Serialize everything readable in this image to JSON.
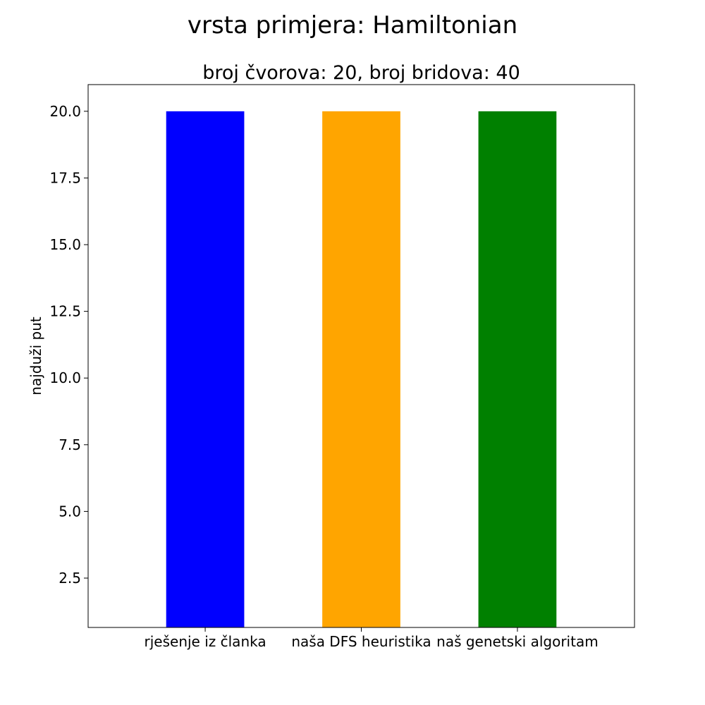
{
  "chart_data": {
    "type": "bar",
    "suptitle": "vrsta primjera: Hamiltonian",
    "title": "broj čvorova: 20, broj bridova: 40",
    "xlabel": "",
    "ylabel": "najduži put",
    "categories": [
      "rješenje iz članka",
      "naša DFS heuristika",
      "naš genetski algoritam"
    ],
    "values": [
      20,
      20,
      20
    ],
    "colors": [
      "#0000ff",
      "#ffa500",
      "#008000"
    ],
    "ylim": [
      0.65,
      21.0
    ],
    "yticks": [
      2.5,
      5.0,
      7.5,
      10.0,
      12.5,
      15.0,
      17.5,
      20.0
    ],
    "ytick_labels": [
      "2.5",
      "5.0",
      "7.5",
      "10.0",
      "12.5",
      "15.0",
      "17.5",
      "20.0"
    ],
    "grid": false,
    "legend": "none"
  }
}
